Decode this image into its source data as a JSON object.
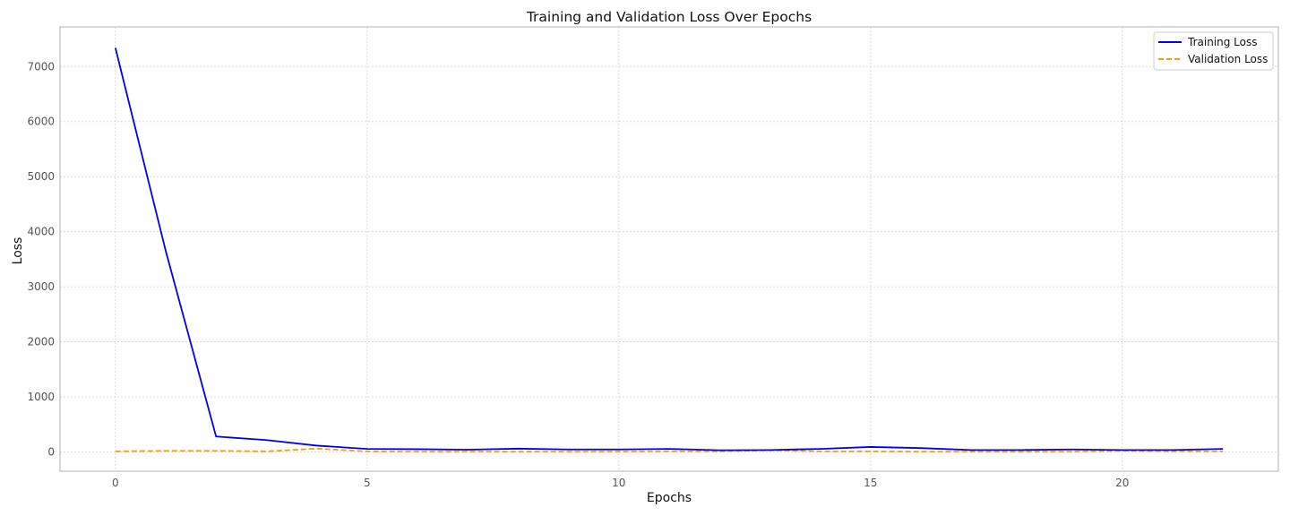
{
  "chart_data": {
    "type": "line",
    "title": "Training and Validation Loss Over Epochs",
    "xlabel": "Epochs",
    "ylabel": "Loss",
    "xlim": [
      -1.1,
      23.1
    ],
    "ylim": [
      -350,
      7720
    ],
    "xticks": [
      0,
      5,
      10,
      15,
      20
    ],
    "yticks": [
      0,
      1000,
      2000,
      3000,
      4000,
      5000,
      6000,
      7000
    ],
    "grid": true,
    "legend_position": "top-right",
    "x": [
      0,
      1,
      2,
      3,
      4,
      5,
      6,
      7,
      8,
      9,
      10,
      11,
      12,
      13,
      14,
      15,
      16,
      17,
      18,
      19,
      20,
      21,
      22
    ],
    "series": [
      {
        "name": "Training Loss",
        "color": "#0000ee",
        "style": "solid",
        "values": [
          7340,
          3650,
          280,
          215,
          115,
          55,
          50,
          40,
          60,
          45,
          45,
          55,
          30,
          35,
          55,
          90,
          70,
          35,
          35,
          45,
          35,
          35,
          55
        ]
      },
      {
        "name": "Validation Loss",
        "color": "#f5a000",
        "style": "dashed",
        "values": [
          10,
          20,
          20,
          10,
          60,
          10,
          5,
          5,
          5,
          5,
          5,
          10,
          10,
          30,
          10,
          10,
          5,
          5,
          5,
          5,
          20,
          10,
          10
        ]
      }
    ]
  }
}
